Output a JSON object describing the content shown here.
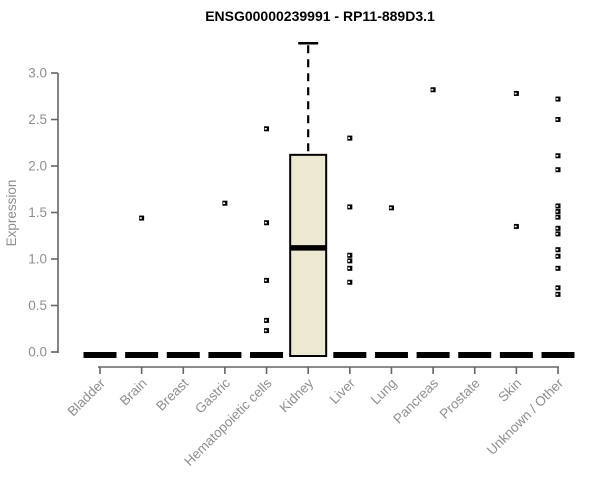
{
  "chart_data": {
    "type": "box",
    "title": "ENSG00000239991 - RP11-889D3.1",
    "ylabel": "Expression",
    "xlabel": "",
    "ylim": [
      0,
      3.3
    ],
    "yticks": [
      0.0,
      0.5,
      1.0,
      1.5,
      2.0,
      2.5,
      3.0
    ],
    "grid": false,
    "legend": false,
    "categories": [
      "Bladder",
      "Brain",
      "Breast",
      "Gastric",
      "Hematopoietic cells",
      "Kidney",
      "Liver",
      "Lung",
      "Pancreas",
      "Prostate",
      "Skin",
      "Unknown / Other"
    ],
    "boxes": [
      {
        "category": "Bladder",
        "q1": 0,
        "median": 0,
        "q3": 0
      },
      {
        "category": "Brain",
        "q1": 0,
        "median": 0,
        "q3": 0
      },
      {
        "category": "Breast",
        "q1": 0,
        "median": 0,
        "q3": 0
      },
      {
        "category": "Gastric",
        "q1": 0,
        "median": 0,
        "q3": 0
      },
      {
        "category": "Hematopoietic cells",
        "q1": 0,
        "median": 0,
        "q3": 0
      },
      {
        "category": "Kidney",
        "q1": 0,
        "median": 1.12,
        "q3": 2.12,
        "whisker_high": 3.32
      },
      {
        "category": "Liver",
        "q1": 0,
        "median": 0,
        "q3": 0
      },
      {
        "category": "Lung",
        "q1": 0,
        "median": 0,
        "q3": 0
      },
      {
        "category": "Pancreas",
        "q1": 0,
        "median": 0,
        "q3": 0
      },
      {
        "category": "Prostate",
        "q1": 0,
        "median": 0,
        "q3": 0
      },
      {
        "category": "Skin",
        "q1": 0,
        "median": 0,
        "q3": 0
      },
      {
        "category": "Unknown / Other",
        "q1": 0,
        "median": 0,
        "q3": 0
      }
    ],
    "outliers": [
      {
        "category": "Brain",
        "values": [
          1.44
        ]
      },
      {
        "category": "Gastric",
        "values": [
          1.6
        ]
      },
      {
        "category": "Hematopoietic cells",
        "values": [
          2.4,
          1.39,
          0.77,
          0.34,
          0.23
        ]
      },
      {
        "category": "Liver",
        "values": [
          2.3,
          1.56,
          1.04,
          0.98,
          0.9,
          0.75
        ]
      },
      {
        "category": "Lung",
        "values": [
          1.55
        ]
      },
      {
        "category": "Pancreas",
        "values": [
          2.82
        ]
      },
      {
        "category": "Skin",
        "values": [
          2.78,
          1.35
        ]
      },
      {
        "category": "Unknown / Other",
        "values": [
          2.72,
          2.5,
          2.11,
          1.96,
          1.57,
          1.51,
          1.45,
          1.33,
          1.27,
          1.1,
          1.03,
          0.9,
          0.69,
          0.62
        ]
      }
    ],
    "colors": {
      "box_fill": "#ede8d1",
      "box_border": "#000000",
      "median": "#000000",
      "whisker": "#000000",
      "outlier": "#000000",
      "axis": "#666666",
      "tick_label": "#8f8f8f",
      "title": "#000000",
      "background": "#ffffff"
    }
  }
}
